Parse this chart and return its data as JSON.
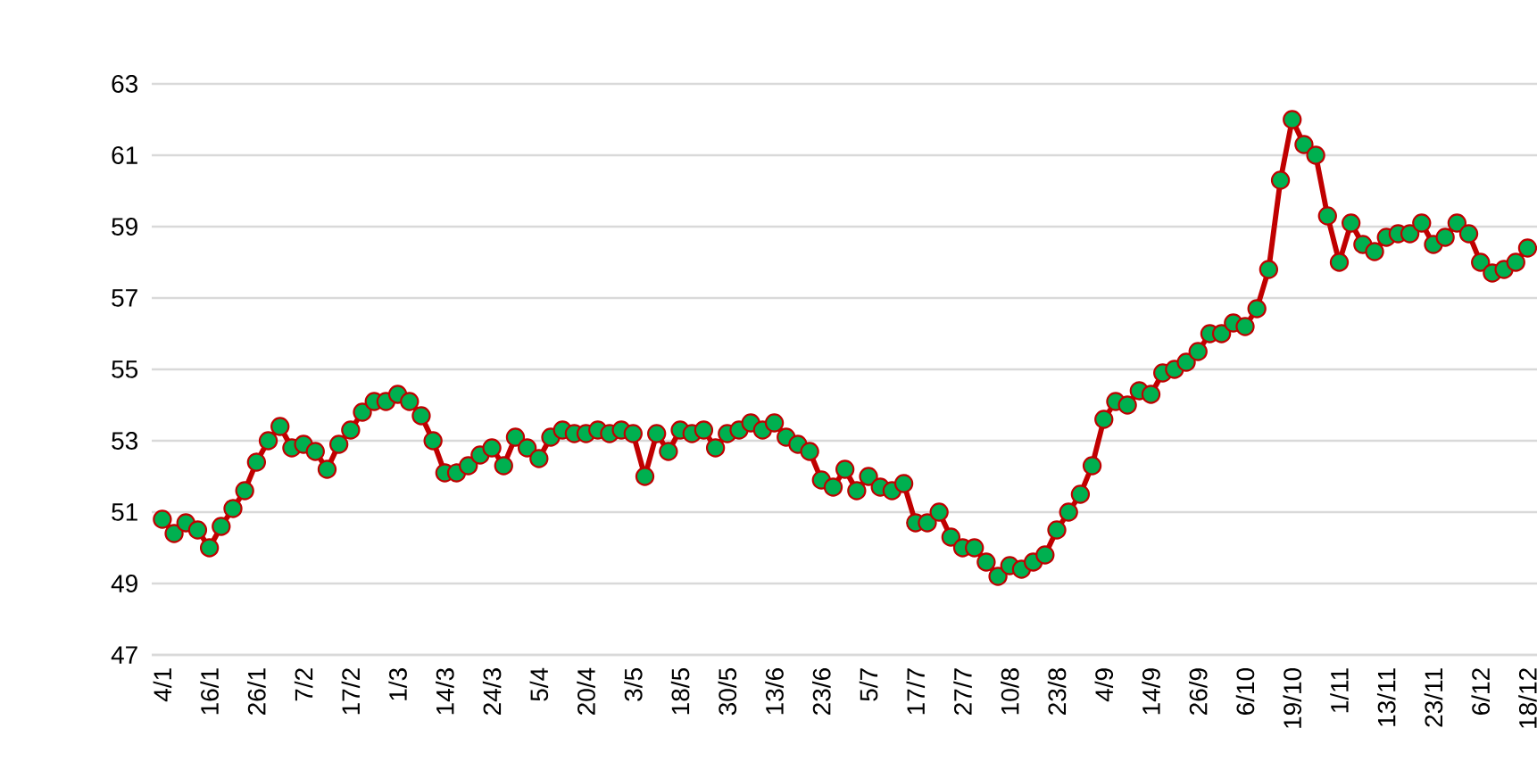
{
  "chart_data": {
    "type": "line",
    "categories": [
      "4/1",
      null,
      null,
      null,
      "16/1",
      null,
      null,
      null,
      "26/1",
      null,
      null,
      null,
      "7/2",
      null,
      null,
      null,
      "17/2",
      null,
      null,
      null,
      "1/3",
      null,
      null,
      null,
      "14/3",
      null,
      null,
      null,
      "24/3",
      null,
      null,
      null,
      "5/4",
      null,
      null,
      null,
      "20/4",
      null,
      null,
      null,
      "3/5",
      null,
      null,
      null,
      "18/5",
      null,
      null,
      null,
      "30/5",
      null,
      null,
      null,
      "13/6",
      null,
      null,
      null,
      "23/6",
      null,
      null,
      null,
      "5/7",
      null,
      null,
      null,
      "17/7",
      null,
      null,
      null,
      "27/7",
      null,
      null,
      null,
      "10/8",
      null,
      null,
      null,
      "23/8",
      null,
      null,
      null,
      "4/9",
      null,
      null,
      null,
      "14/9",
      null,
      null,
      null,
      "26/9",
      null,
      null,
      null,
      "6/10",
      null,
      null,
      null,
      "19/10",
      null,
      null,
      null,
      "1/11",
      null,
      null,
      null,
      "13/11",
      null,
      null,
      null,
      "23/11",
      null,
      null,
      null,
      "6/12",
      null,
      null,
      null,
      "18/12"
    ],
    "series": [
      {
        "color": "#00b050",
        "values": [
          50.8,
          50.4,
          50.7,
          50.5,
          50.0,
          50.6,
          51.1,
          51.6,
          52.4,
          53.0,
          53.4,
          52.8,
          52.9,
          52.7,
          52.2,
          52.9,
          53.3,
          53.8,
          54.1,
          54.1,
          54.3,
          54.1,
          53.7,
          53.0,
          52.1,
          52.1,
          52.3,
          52.6,
          52.8,
          52.3,
          53.1,
          52.8,
          52.5,
          53.1,
          53.3,
          53.2,
          53.2,
          53.3,
          53.2,
          53.3,
          53.2,
          52.0,
          53.2,
          52.7,
          53.3,
          53.2,
          53.3,
          52.8,
          53.2,
          53.3,
          53.5,
          53.3,
          53.5,
          53.1,
          52.9,
          52.7,
          51.9,
          51.7,
          52.2,
          51.6,
          52.0,
          51.7,
          51.6,
          51.8,
          50.7,
          50.7,
          51.0,
          50.3,
          50.0,
          50.0,
          49.6,
          49.2,
          49.5,
          49.4,
          49.6,
          49.8,
          50.5,
          51.0,
          51.5,
          52.3,
          53.6,
          54.1,
          54.0,
          54.4,
          54.3,
          54.9,
          55.0,
          55.2,
          55.5,
          56.0,
          56.0,
          56.3,
          56.2,
          56.7,
          57.8,
          60.3,
          62.0,
          61.3,
          61.0,
          59.3,
          58.0,
          59.1,
          58.5,
          58.3,
          58.7,
          58.8,
          58.8,
          59.1,
          58.5,
          58.7,
          59.1,
          58.8,
          58.0,
          57.7,
          57.8,
          58.0,
          58.4
        ]
      }
    ],
    "ylim": [
      47,
      63
    ],
    "yticks": [
      47,
      49,
      51,
      53,
      55,
      57,
      59,
      61,
      63
    ],
    "grid": "y",
    "marker": "circle",
    "line_style": "solid"
  }
}
